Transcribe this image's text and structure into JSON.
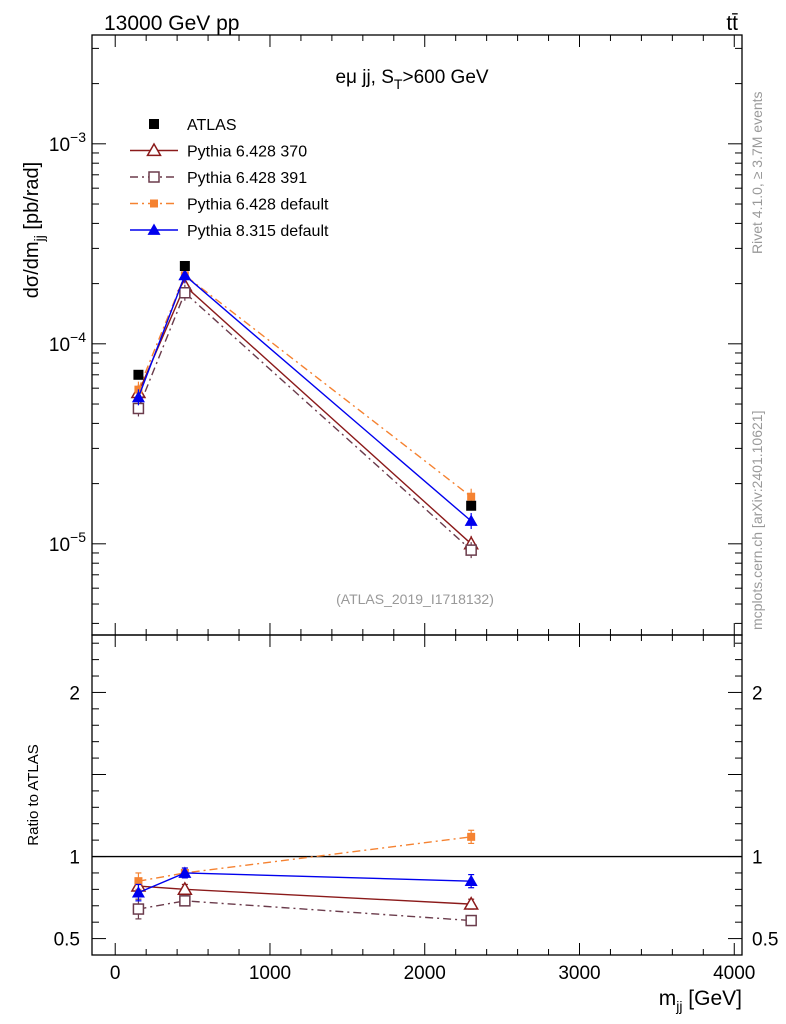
{
  "header": {
    "energy": "13000 GeV pp",
    "process": "tt̄"
  },
  "side": {
    "rivet": "Rivet 4.1.0, ≥ 3.7M events",
    "mcplots": "mcplots.cern.ch [arXiv:2401.10621]"
  },
  "chart_data": {
    "type": "line",
    "title": "eμ jj, S_T>600 GeV",
    "analysis_tag": "(ATLAS_2019_I1718132)",
    "xlabel": "m_jj [GeV]",
    "ylabel_main": "dσ/dm_jj [pb/rad]",
    "ylabel_ratio": "Ratio to ATLAS",
    "x": [
      150,
      450,
      2300
    ],
    "xlim": [
      -150,
      4050
    ],
    "ylim_main": [
      3.5e-06,
      0.0035
    ],
    "ylim_ratio": [
      0.4,
      2.35
    ],
    "x_ticks": [
      "0",
      "1000",
      "2000",
      "3000",
      "4000"
    ],
    "y_ticks_main": [
      "10^-5",
      "10^-4",
      "10^-3"
    ],
    "y_ticks_ratio": [
      "0.5",
      "1",
      "2"
    ],
    "data": {
      "name": "ATLAS",
      "values": [
        7e-05,
        0.000245,
        1.55e-05
      ],
      "color": "#000000"
    },
    "series": [
      {
        "name": "Pythia 6.428 370",
        "values": [
          5.7e-05,
          0.000195,
          1e-05
        ],
        "ratio": [
          0.82,
          0.8,
          0.71
        ],
        "ratio_err": [
          0.04,
          0.03,
          0.03
        ],
        "color": "#8b1a1a",
        "marker": "open-triangle",
        "dash": "solid"
      },
      {
        "name": "Pythia 6.428 391",
        "values": [
          4.75e-05,
          0.00018,
          9.3e-06
        ],
        "ratio": [
          0.68,
          0.73,
          0.61
        ],
        "ratio_err": [
          0.06,
          0.03,
          0.03
        ],
        "color": "#6b3c4c",
        "marker": "open-square",
        "dash": "dashdot"
      },
      {
        "name": "Pythia 6.428 default",
        "values": [
          5.9e-05,
          0.00022,
          1.72e-05
        ],
        "ratio": [
          0.85,
          0.9,
          1.12
        ],
        "ratio_err": [
          0.05,
          0.03,
          0.04
        ],
        "color": "#f58231",
        "marker": "filled-square",
        "dash": "dashdot"
      },
      {
        "name": "Pythia 8.315 default",
        "values": [
          5.4e-05,
          0.00022,
          1.3e-05
        ],
        "ratio": [
          0.78,
          0.9,
          0.85
        ],
        "ratio_err": [
          0.05,
          0.03,
          0.04
        ],
        "color": "#0000ee",
        "marker": "filled-triangle",
        "dash": "solid"
      }
    ]
  }
}
